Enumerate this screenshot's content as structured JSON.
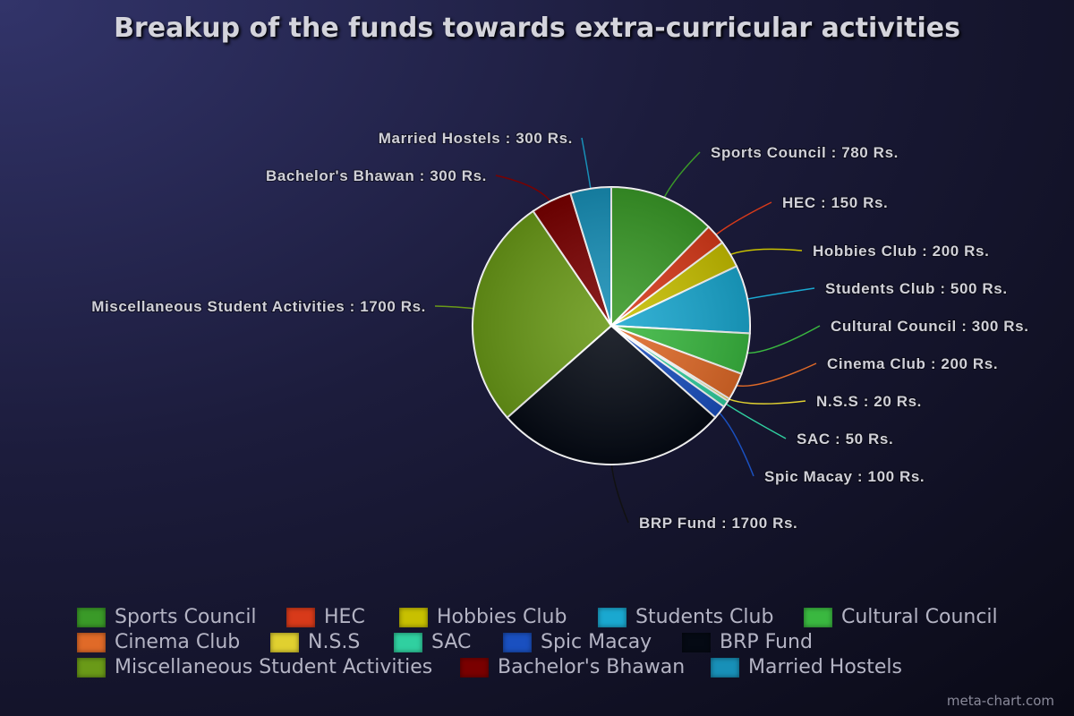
{
  "chart_data": {
    "type": "pie",
    "title": "Breakup of the funds towards extra-curricular activities",
    "unit": "Rs.",
    "legend_position": "bottom",
    "slices": [
      {
        "label": "Sports Council",
        "value": 780,
        "color": "#3a9a28",
        "data_label": "Sports Council : 780 Rs."
      },
      {
        "label": "HEC",
        "value": 150,
        "color": "#d83a1a",
        "data_label": "HEC : 150 Rs."
      },
      {
        "label": "Hobbies Club",
        "value": 200,
        "color": "#c8c000",
        "data_label": "Hobbies Club : 200 Rs."
      },
      {
        "label": "Students Club",
        "value": 500,
        "color": "#1aa8d0",
        "data_label": "Students Club : 500 Rs."
      },
      {
        "label": "Cultural Council",
        "value": 300,
        "color": "#3ab840",
        "data_label": "Cultural Council : 300 Rs."
      },
      {
        "label": "Cinema Club",
        "value": 200,
        "color": "#e06a28",
        "data_label": "Cinema Club : 200 Rs."
      },
      {
        "label": "N.S.S",
        "value": 20,
        "color": "#e0d030",
        "data_label": "N.S.S : 20 Rs."
      },
      {
        "label": "SAC",
        "value": 50,
        "color": "#30d0a0",
        "data_label": "SAC : 50 Rs."
      },
      {
        "label": "Spic Macay",
        "value": 100,
        "color": "#1a50c0",
        "data_label": "Spic Macay : 100 Rs."
      },
      {
        "label": "BRP Fund",
        "value": 1700,
        "color": "#050a14",
        "data_label": "BRP Fund : 1700 Rs."
      },
      {
        "label": "Miscellaneous Student Activities",
        "value": 1700,
        "color": "#6a9a18",
        "data_label": "Miscellaneous Student Activities : 1700 Rs."
      },
      {
        "label": "Bachelor's Bhawan",
        "value": 300,
        "color": "#7a0000",
        "data_label": "Bachelor's Bhawan : 300 Rs."
      },
      {
        "label": "Married Hostels",
        "value": 300,
        "color": "#1890b8",
        "data_label": "Married Hostels : 300 Rs."
      }
    ]
  },
  "watermark": "meta-chart.com"
}
